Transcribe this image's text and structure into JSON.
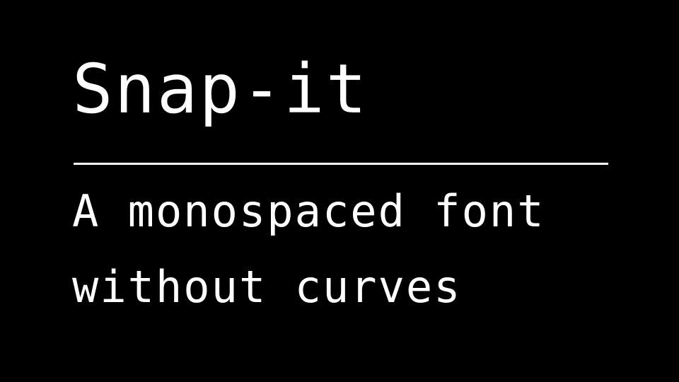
{
  "title": "Snap-it",
  "subtitle": {
    "line1": "A monospaced font",
    "line2": "without curves"
  },
  "colors": {
    "background": "#000000",
    "text": "#ffffff",
    "rule": "#ffffff"
  }
}
